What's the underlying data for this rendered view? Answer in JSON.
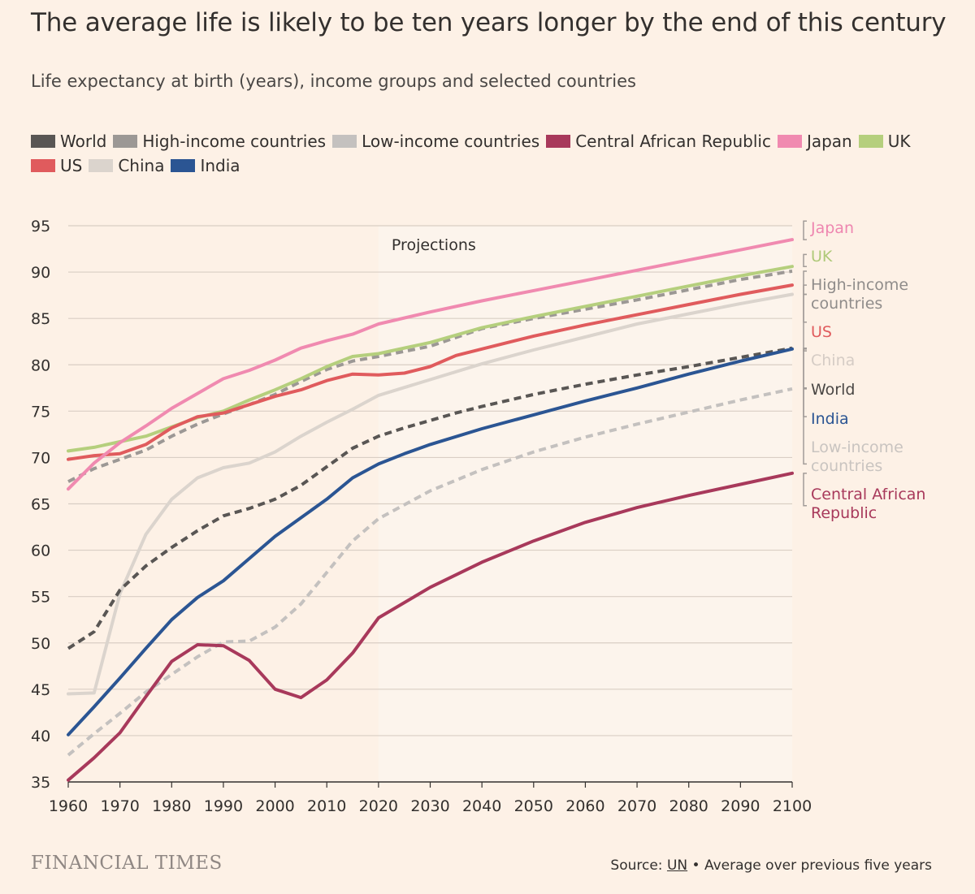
{
  "header": {
    "title": "The average life is likely to be ten years longer by the end of this century",
    "subtitle": "Life expectancy at birth (years), income groups and selected countries"
  },
  "footer": {
    "publisher": "FINANCIAL TIMES",
    "source_prefix": "Source: ",
    "source_link": "UN",
    "source_suffix": " • Average over previous five years"
  },
  "chart_data": {
    "type": "line",
    "title": "The average life is likely to be ten years longer by the end of this century",
    "subtitle": "Life expectancy at birth (years), income groups and selected countries",
    "xlabel": "",
    "ylabel": "",
    "xlim": [
      1960,
      2100
    ],
    "ylim": [
      35,
      95
    ],
    "x_ticks": [
      1960,
      1970,
      1980,
      1990,
      2000,
      2010,
      2020,
      2030,
      2040,
      2050,
      2060,
      2070,
      2080,
      2090,
      2100
    ],
    "y_ticks": [
      35,
      40,
      45,
      50,
      55,
      60,
      65,
      70,
      75,
      80,
      85,
      90,
      95
    ],
    "grid": "horizontal",
    "legend_position": "top",
    "projection_start": 2020,
    "projection_label": "Projections",
    "series": [
      {
        "name": "World",
        "color": "#595654",
        "dashed": true,
        "x": [
          1960,
          1965,
          1970,
          1975,
          1980,
          1985,
          1990,
          1995,
          2000,
          2005,
          2010,
          2015,
          2020,
          2025,
          2030,
          2035,
          2040,
          2050,
          2060,
          2070,
          2080,
          2090,
          2100
        ],
        "y": [
          49.4,
          51.2,
          55.7,
          58.3,
          60.3,
          62.1,
          63.7,
          64.5,
          65.5,
          67.0,
          69.0,
          71.0,
          72.3,
          73.2,
          74.0,
          74.8,
          75.5,
          76.8,
          77.9,
          78.9,
          79.8,
          80.8,
          81.8
        ]
      },
      {
        "name": "High-income countries",
        "color": "#9c9895",
        "dashed": true,
        "x": [
          1960,
          1965,
          1970,
          1975,
          1980,
          1985,
          1990,
          1995,
          2000,
          2005,
          2010,
          2015,
          2020,
          2030,
          2040,
          2050,
          2060,
          2070,
          2080,
          2090,
          2100
        ],
        "y": [
          67.4,
          68.8,
          69.8,
          70.8,
          72.3,
          73.6,
          74.7,
          75.7,
          76.8,
          78.2,
          79.5,
          80.4,
          80.9,
          82.0,
          83.9,
          85.0,
          86.0,
          87.0,
          88.1,
          89.2,
          90.1
        ]
      },
      {
        "name": "Low-income countries",
        "color": "#c4c1bf",
        "dashed": true,
        "x": [
          1960,
          1965,
          1970,
          1975,
          1980,
          1985,
          1990,
          1995,
          2000,
          2005,
          2010,
          2015,
          2020,
          2030,
          2040,
          2050,
          2060,
          2070,
          2080,
          2090,
          2100
        ],
        "y": [
          37.9,
          40.2,
          42.4,
          44.7,
          46.6,
          48.5,
          50.1,
          50.2,
          51.7,
          54.2,
          57.6,
          61.0,
          63.4,
          66.4,
          68.7,
          70.6,
          72.2,
          73.6,
          74.9,
          76.2,
          77.4
        ]
      },
      {
        "name": "Central African Republic",
        "color": "#a8395b",
        "dashed": false,
        "x": [
          1960,
          1965,
          1970,
          1975,
          1980,
          1985,
          1990,
          1995,
          2000,
          2005,
          2010,
          2015,
          2020,
          2030,
          2040,
          2050,
          2060,
          2070,
          2080,
          2090,
          2100
        ],
        "y": [
          35.2,
          37.6,
          40.3,
          44.2,
          48.0,
          49.8,
          49.7,
          48.1,
          45.0,
          44.1,
          46.0,
          48.9,
          52.7,
          56.0,
          58.7,
          61.0,
          63.0,
          64.6,
          65.9,
          67.1,
          68.3
        ]
      },
      {
        "name": "Japan",
        "color": "#f08ab0",
        "dashed": false,
        "x": [
          1960,
          1965,
          1970,
          1975,
          1980,
          1985,
          1990,
          1995,
          2000,
          2005,
          2010,
          2015,
          2020,
          2030,
          2040,
          2050,
          2060,
          2070,
          2080,
          2090,
          2100
        ],
        "y": [
          66.6,
          69.4,
          71.6,
          73.4,
          75.3,
          76.9,
          78.5,
          79.4,
          80.5,
          81.8,
          82.6,
          83.3,
          84.4,
          85.7,
          86.9,
          88.0,
          89.1,
          90.2,
          91.3,
          92.4,
          93.5
        ]
      },
      {
        "name": "UK",
        "color": "#b5cf7d",
        "dashed": false,
        "x": [
          1960,
          1965,
          1970,
          1975,
          1980,
          1985,
          1990,
          1995,
          2000,
          2005,
          2010,
          2015,
          2020,
          2030,
          2040,
          2050,
          2060,
          2070,
          2080,
          2090,
          2100
        ],
        "y": [
          70.7,
          71.1,
          71.7,
          72.3,
          73.3,
          74.3,
          75.0,
          76.2,
          77.3,
          78.5,
          79.8,
          80.9,
          81.2,
          82.4,
          84.0,
          85.2,
          86.3,
          87.4,
          88.5,
          89.6,
          90.6
        ]
      },
      {
        "name": "US",
        "color": "#e05b5d",
        "dashed": false,
        "x": [
          1960,
          1965,
          1970,
          1975,
          1980,
          1985,
          1990,
          1995,
          2000,
          2005,
          2010,
          2015,
          2020,
          2025,
          2030,
          2035,
          2040,
          2050,
          2060,
          2070,
          2080,
          2090,
          2100
        ],
        "y": [
          69.8,
          70.2,
          70.4,
          71.4,
          73.2,
          74.4,
          74.8,
          75.7,
          76.6,
          77.3,
          78.3,
          79.0,
          78.9,
          79.1,
          79.8,
          81.0,
          81.7,
          83.1,
          84.3,
          85.4,
          86.5,
          87.6,
          88.6
        ]
      },
      {
        "name": "China",
        "color": "#dbd4cd",
        "dashed": false,
        "x": [
          1960,
          1965,
          1970,
          1975,
          1980,
          1985,
          1990,
          1995,
          2000,
          2005,
          2010,
          2015,
          2020,
          2030,
          2040,
          2050,
          2060,
          2070,
          2080,
          2090,
          2100
        ],
        "y": [
          44.5,
          44.6,
          55.3,
          61.7,
          65.5,
          67.8,
          68.9,
          69.4,
          70.6,
          72.3,
          73.8,
          75.2,
          76.7,
          78.4,
          80.1,
          81.6,
          83.0,
          84.4,
          85.5,
          86.6,
          87.6
        ]
      },
      {
        "name": "India",
        "color": "#2b5593",
        "dashed": false,
        "x": [
          1960,
          1965,
          1970,
          1975,
          1980,
          1985,
          1990,
          1995,
          2000,
          2005,
          2010,
          2015,
          2020,
          2025,
          2030,
          2040,
          2050,
          2060,
          2070,
          2080,
          2090,
          2100
        ],
        "y": [
          40.1,
          43.1,
          46.2,
          49.4,
          52.5,
          54.9,
          56.7,
          59.1,
          61.5,
          63.5,
          65.5,
          67.8,
          69.3,
          70.4,
          71.4,
          73.1,
          74.6,
          76.1,
          77.5,
          79.0,
          80.4,
          81.7
        ]
      }
    ],
    "end_labels": [
      {
        "text": "Japan",
        "series": "Japan",
        "color": "#ee86b0",
        "bracket_top": 93.5,
        "bracket_bottom": 95.5
      },
      {
        "text": "UK",
        "series": "UK",
        "color": "#afc979",
        "bracket_top": 90.6,
        "bracket_bottom": 91.9
      },
      {
        "text": "High-income countries",
        "lines": [
          "High-income",
          "countries"
        ],
        "series": "High-income countries",
        "color": "#8f8c8a",
        "bracket_top": 87.6,
        "bracket_bottom": 90.1
      },
      {
        "text": "US",
        "series": "US",
        "color": "#e05b5d",
        "bracket_top": 84.6,
        "bracket_bottom": 88.6
      },
      {
        "text": "China",
        "series": "China",
        "color": "#d5ccc5",
        "bracket_top": 81.5,
        "bracket_bottom": 87.6
      },
      {
        "text": "World",
        "series": "World",
        "color": "#4a4745",
        "bracket_top": 77.5,
        "bracket_bottom": 81.8
      },
      {
        "text": "India",
        "series": "India",
        "color": "#2b5593",
        "bracket_top": 74.4,
        "bracket_bottom": 81.7
      },
      {
        "text": "Low-income countries",
        "lines": [
          "Low-income",
          "countries"
        ],
        "series": "Low-income countries",
        "color": "#c9c4c0",
        "bracket_top": 69.3,
        "bracket_bottom": 77.4
      },
      {
        "text": "Central African Republic",
        "lines": [
          "Central African",
          "Republic"
        ],
        "series": "Central African Republic",
        "color": "#a8395b",
        "bracket_top": 64.8,
        "bracket_bottom": 68.3
      }
    ]
  }
}
